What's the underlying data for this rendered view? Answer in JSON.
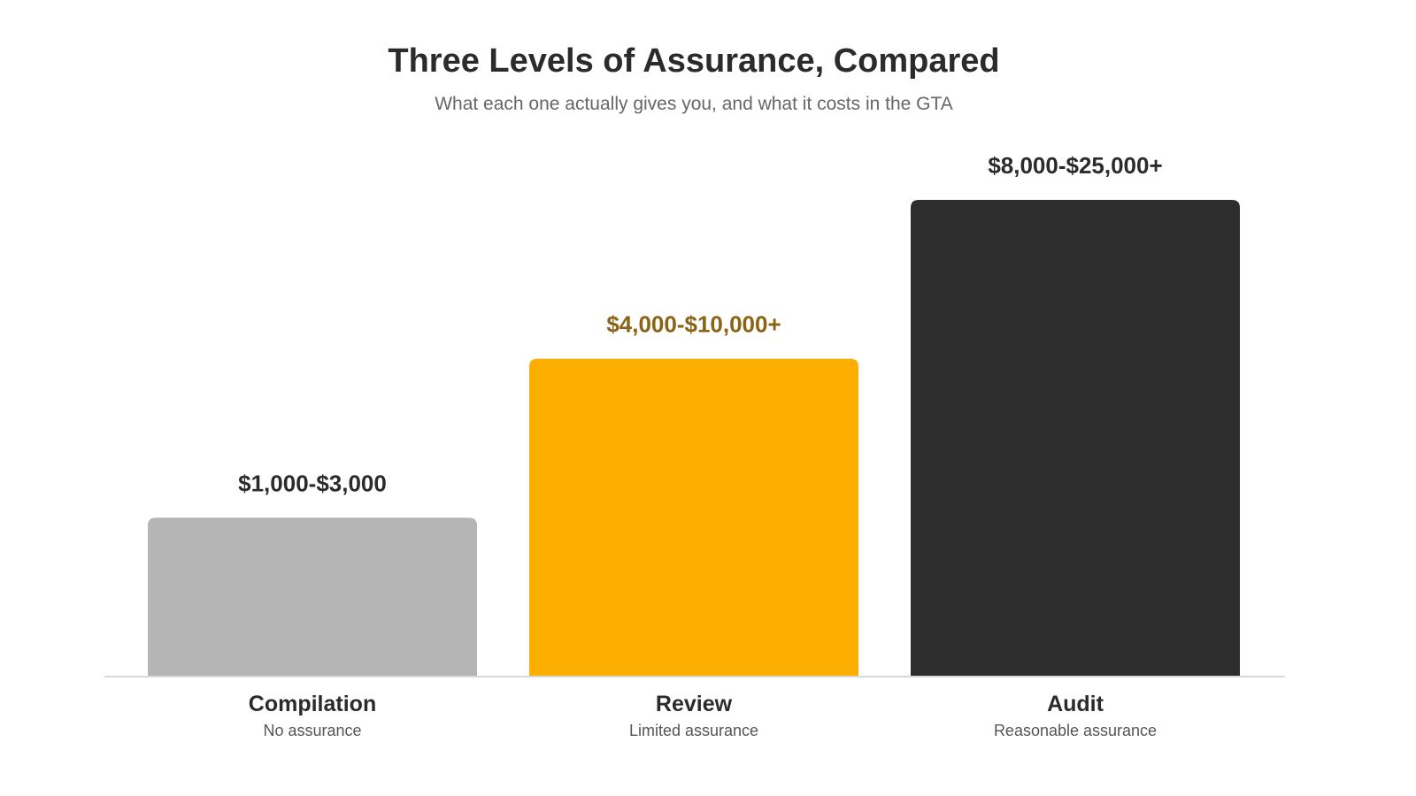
{
  "chart_data": {
    "type": "bar",
    "title": "Three Levels of Assurance, Compared",
    "subtitle": "What each one actually gives you, and what it costs in the GTA",
    "xlabel": "",
    "ylabel": "",
    "grid": false,
    "categories": [
      "Compilation",
      "Review",
      "Audit"
    ],
    "category_sublabels": [
      "No assurance",
      "Limited assurance",
      "Reasonable assurance"
    ],
    "value_labels": [
      "$1,000-$3,000",
      "$4,000-$10,000+",
      "$8,000-$25,000+"
    ],
    "values": [
      1,
      2,
      3
    ],
    "ylim": [
      0,
      3
    ],
    "colors": [
      "#b5b5b5",
      "#fbae00",
      "#2d2d2d"
    ],
    "value_label_colors": [
      "#2b2b2b",
      "#8a6314",
      "#2b2b2b"
    ]
  }
}
